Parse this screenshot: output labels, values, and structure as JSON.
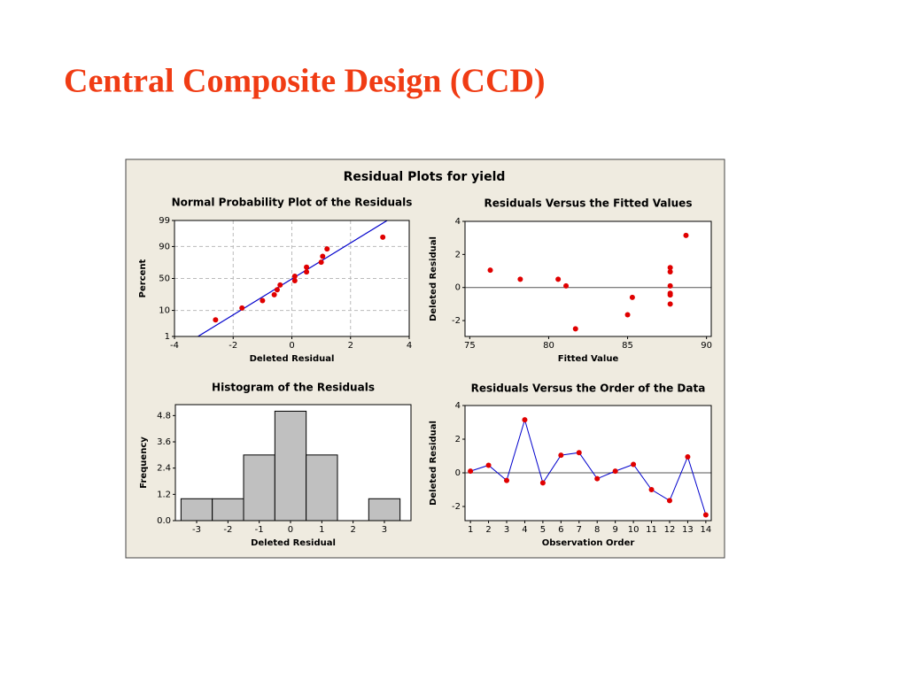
{
  "slide_title": "Central Composite Design (CCD)",
  "figure_title": "Residual Plots for yield",
  "chart_data": [
    {
      "type": "probability",
      "title": "Normal Probability Plot of the Residuals",
      "x_label": "Deleted Residual",
      "y_label": "Percent",
      "y_scale": "probability",
      "x": [
        -2.6,
        -1.7,
        -1.0,
        -0.6,
        -0.5,
        -0.4,
        0.1,
        0.1,
        0.5,
        0.5,
        1.0,
        1.05,
        1.2,
        3.1
      ],
      "values": [
        4.86,
        11.8,
        18.75,
        25.7,
        32.6,
        39.6,
        46.5,
        53.5,
        60.4,
        67.4,
        74.3,
        81.25,
        88.2,
        95.1
      ],
      "fit_line": {
        "x": [
          -3.2,
          3.25
        ],
        "y": [
          1,
          99
        ]
      },
      "xlim": [
        -4,
        4
      ],
      "xticks": [
        -4,
        -2,
        0,
        2,
        4
      ],
      "ylim": [
        1,
        99
      ],
      "yticks": [
        1,
        10,
        50,
        90,
        99
      ],
      "grid": true,
      "color": "#e00000",
      "line_color": "#0000cc"
    },
    {
      "type": "scatter",
      "title": "Residuals Versus the Fitted Values",
      "x_label": "Fitted Value",
      "y_label": "Deleted Residual",
      "x": [
        76.3,
        78.2,
        80.6,
        81.1,
        81.7,
        85.0,
        85.3,
        87.7,
        87.7,
        87.7,
        87.7,
        87.7,
        87.7,
        88.7
      ],
      "values": [
        1.05,
        0.5,
        0.5,
        0.1,
        -2.5,
        -1.65,
        -0.6,
        1.2,
        0.95,
        0.1,
        -0.35,
        -0.45,
        -1.0,
        3.15
      ],
      "reference_line": 0,
      "xlim": [
        74.7,
        90.3
      ],
      "xticks": [
        75,
        80,
        85,
        90
      ],
      "ylim": [
        -2.96,
        4
      ],
      "yticks": [
        -2,
        0,
        2,
        4
      ],
      "grid": false,
      "color": "#e00000"
    },
    {
      "type": "histogram",
      "title": "Histogram of the Residuals",
      "x_label": "Deleted Residual",
      "y_label": "Frequency",
      "bins": [
        -3.5,
        -2.5,
        -1.5,
        -0.5,
        0.5,
        1.5,
        2.5,
        3.5
      ],
      "values": [
        1,
        1,
        3,
        5,
        3,
        0,
        1
      ],
      "xlim": [
        -3.68,
        3.85
      ],
      "xticks": [
        -3,
        -2,
        -1,
        0,
        1,
        2,
        3
      ],
      "ylim": [
        0,
        5.3
      ],
      "yticks": [
        {
          "value": 0,
          "label": "0.0"
        },
        1.2,
        2.4,
        3.6,
        4.8
      ],
      "grid": false,
      "color": "#c0c0c0"
    },
    {
      "type": "line",
      "title": "Residuals Versus the Order of the Data",
      "x_label": "Observation Order",
      "y_label": "Deleted Residual",
      "x": [
        1,
        2,
        3,
        4,
        5,
        6,
        7,
        8,
        9,
        10,
        11,
        12,
        13,
        14
      ],
      "values": [
        0.1,
        0.45,
        -0.45,
        3.15,
        -0.6,
        1.05,
        1.2,
        -0.35,
        0.1,
        0.5,
        -1.0,
        -1.65,
        0.95,
        -2.5
      ],
      "reference_line": 0,
      "xlim": [
        0.7,
        14.3
      ],
      "xticks": [
        1,
        2,
        3,
        4,
        5,
        6,
        7,
        8,
        9,
        10,
        11,
        12,
        13,
        14
      ],
      "ylim": [
        -2.84,
        4
      ],
      "yticks": [
        -2,
        0,
        2,
        4
      ],
      "grid": false,
      "color": "#e00000",
      "line_color": "#0000cc"
    }
  ]
}
